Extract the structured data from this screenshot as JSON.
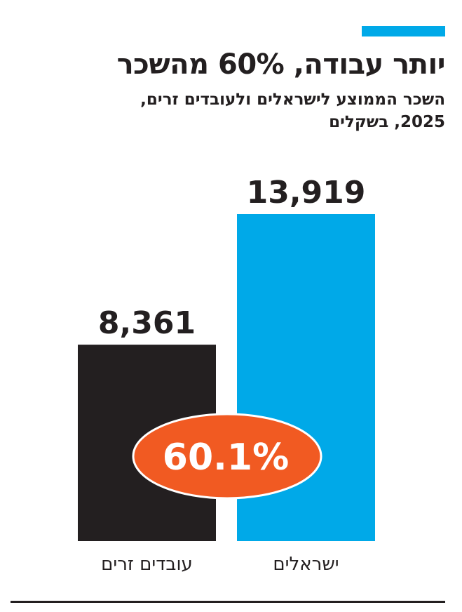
{
  "header": {
    "title": "יותר עבודה, 60% מהשכר",
    "subtitle_line1": "השכר הממוצע לישראלים ולעובדים זרים,",
    "subtitle_line2": "2025, בשקלים"
  },
  "colors": {
    "accent": "#00a9e8",
    "foreign_bar": "#231f20",
    "israeli_bar": "#00a9e8",
    "badge_fill": "#f15a22",
    "badge_text": "#ffffff",
    "text": "#231f20"
  },
  "chart_data": {
    "type": "bar",
    "title": "יותר עבודה, 60% מהשכר",
    "subtitle": "השכר הממוצע לישראלים ולעובדים זרים, 2025, בשקלים",
    "categories": [
      "עובדים זרים",
      "ישראלים"
    ],
    "values": [
      8361,
      13919
    ],
    "value_labels": [
      "8,361",
      "13,919"
    ],
    "ratio_label": "60.1%",
    "ratio_value": 60.1,
    "ylim": [
      0,
      13919
    ],
    "grid": false,
    "legend": "none"
  }
}
